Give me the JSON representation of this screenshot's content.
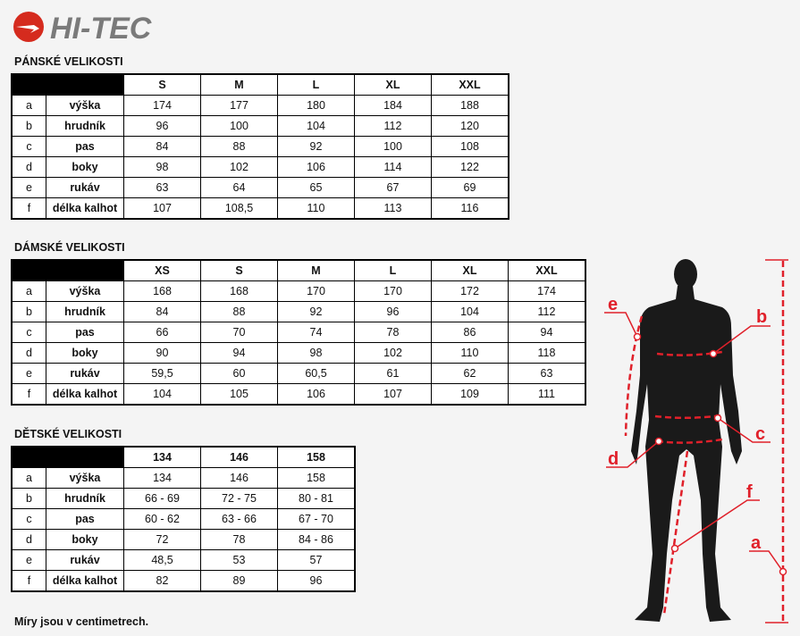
{
  "brand": {
    "logo_text": "HI-TEC",
    "logo_color": "#d52b1e",
    "text_color": "#7a7a7a"
  },
  "men": {
    "title": "PÁNSKÉ VELIKOSTI",
    "sizes": [
      "S",
      "M",
      "L",
      "XL",
      "XXL"
    ],
    "rows": [
      {
        "letter": "a",
        "label": "výška",
        "values": [
          "174",
          "177",
          "180",
          "184",
          "188"
        ]
      },
      {
        "letter": "b",
        "label": "hrudník",
        "values": [
          "96",
          "100",
          "104",
          "112",
          "120"
        ]
      },
      {
        "letter": "c",
        "label": "pas",
        "values": [
          "84",
          "88",
          "92",
          "100",
          "108"
        ]
      },
      {
        "letter": "d",
        "label": "boky",
        "values": [
          "98",
          "102",
          "106",
          "114",
          "122"
        ]
      },
      {
        "letter": "e",
        "label": "rukáv",
        "values": [
          "63",
          "64",
          "65",
          "67",
          "69"
        ]
      },
      {
        "letter": "f",
        "label": "délka kalhot",
        "values": [
          "107",
          "108,5",
          "110",
          "113",
          "116"
        ]
      }
    ]
  },
  "women": {
    "title": "DÁMSKÉ VELIKOSTI",
    "sizes": [
      "XS",
      "S",
      "M",
      "L",
      "XL",
      "XXL"
    ],
    "rows": [
      {
        "letter": "a",
        "label": "výška",
        "values": [
          "168",
          "168",
          "170",
          "170",
          "172",
          "174"
        ]
      },
      {
        "letter": "b",
        "label": "hrudník",
        "values": [
          "84",
          "88",
          "92",
          "96",
          "104",
          "112"
        ]
      },
      {
        "letter": "c",
        "label": "pas",
        "values": [
          "66",
          "70",
          "74",
          "78",
          "86",
          "94"
        ]
      },
      {
        "letter": "d",
        "label": "boky",
        "values": [
          "90",
          "94",
          "98",
          "102",
          "110",
          "118"
        ]
      },
      {
        "letter": "e",
        "label": "rukáv",
        "values": [
          "59,5",
          "60",
          "60,5",
          "61",
          "62",
          "63"
        ]
      },
      {
        "letter": "f",
        "label": "délka kalhot",
        "values": [
          "104",
          "105",
          "106",
          "107",
          "109",
          "111"
        ]
      }
    ]
  },
  "kids": {
    "title": "DĚTSKÉ VELIKOSTI",
    "sizes": [
      "134",
      "146",
      "158"
    ],
    "rows": [
      {
        "letter": "a",
        "label": "výška",
        "values": [
          "134",
          "146",
          "158"
        ]
      },
      {
        "letter": "b",
        "label": "hrudník",
        "values": [
          "66 - 69",
          "72 - 75",
          "80 - 81"
        ]
      },
      {
        "letter": "c",
        "label": "pas",
        "values": [
          "60 - 62",
          "63 - 66",
          "67 - 70"
        ]
      },
      {
        "letter": "d",
        "label": "boky",
        "values": [
          "72",
          "78",
          "84 - 86"
        ]
      },
      {
        "letter": "e",
        "label": "rukáv",
        "values": [
          "48,5",
          "53",
          "57"
        ]
      },
      {
        "letter": "f",
        "label": "délka kalhot",
        "values": [
          "82",
          "89",
          "96"
        ]
      }
    ]
  },
  "footer": "Míry jsou v centimetrech.",
  "figure": {
    "labels": {
      "a": "a",
      "b": "b",
      "c": "c",
      "d": "d",
      "e": "e",
      "f": "f"
    },
    "measure_color": "#e0202a",
    "silhouette_color": "#1a1a1a"
  }
}
